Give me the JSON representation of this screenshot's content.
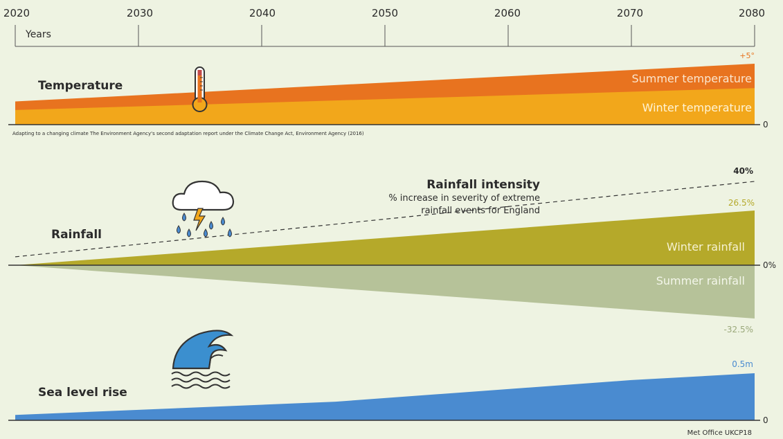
{
  "chart_data": {
    "type": "area",
    "x_ticks": [
      2020,
      2030,
      2040,
      2050,
      2060,
      2070,
      2080
    ],
    "xlim": [
      2020,
      2080
    ],
    "xlabel": "Years",
    "colors": {
      "background": "#eef3e2",
      "summer_temperature": "#e8731f",
      "winter_temperature": "#f2a71b",
      "winter_rainfall": "#b5a92a",
      "summer_rainfall": "#b6c299",
      "sea_level": "#4a8bd0",
      "rainfall_intensity": "#333333",
      "label_temperature_max": "#e8731f",
      "label_winter_rainfall_max": "#b5a92a",
      "label_summer_rainfall_min": "#9aa87a",
      "label_sea_level_max": "#4a8bd0"
    },
    "panels": {
      "temperature": {
        "label": "Temperature",
        "icon": "thermometer-icon",
        "baseline_label": "0",
        "max_label": "+5°",
        "source": "Adapting to a changing climate The Environment Agency's second adaptation report under the Climate Change Act, Environment Agency (2016)",
        "series": [
          {
            "name": "Summer temperature",
            "x": [
              2020,
              2080
            ],
            "y": [
              1.9,
              5.0
            ]
          },
          {
            "name": "Winter temperature",
            "x": [
              2020,
              2080
            ],
            "y": [
              1.2,
              3.0
            ]
          }
        ]
      },
      "rainfall": {
        "label": "Rainfall",
        "icon": "rain-cloud-lightning-icon",
        "baseline_label": "0%",
        "max_label": "40%",
        "winter_max_label": "26.5%",
        "summer_min_label": "-32.5%",
        "intensity_title": "Rainfall intensity",
        "intensity_desc_1": "% increase in severity of extreme",
        "intensity_desc_2": "rainfall events for England",
        "series": [
          {
            "name": "Winter rainfall",
            "x": [
              2020,
              2080
            ],
            "y": [
              0,
              26.5
            ]
          },
          {
            "name": "Summer rainfall",
            "x": [
              2020,
              2080
            ],
            "y": [
              0,
              -32.5
            ]
          },
          {
            "name": "Rainfall intensity",
            "x": [
              2020,
              2080
            ],
            "y": [
              4,
              40
            ]
          }
        ]
      },
      "sea_level": {
        "label": "Sea level rise",
        "icon": "wave-icon",
        "baseline_label": "0",
        "max_label": "0.5m",
        "source": "Met Office UKCP18",
        "series": [
          {
            "name": "Sea level rise",
            "x": [
              2020,
              2046,
              2058,
              2070,
              2080
            ],
            "y": [
              0.055,
              0.19,
              0.3,
              0.41,
              0.48
            ]
          }
        ]
      }
    }
  }
}
